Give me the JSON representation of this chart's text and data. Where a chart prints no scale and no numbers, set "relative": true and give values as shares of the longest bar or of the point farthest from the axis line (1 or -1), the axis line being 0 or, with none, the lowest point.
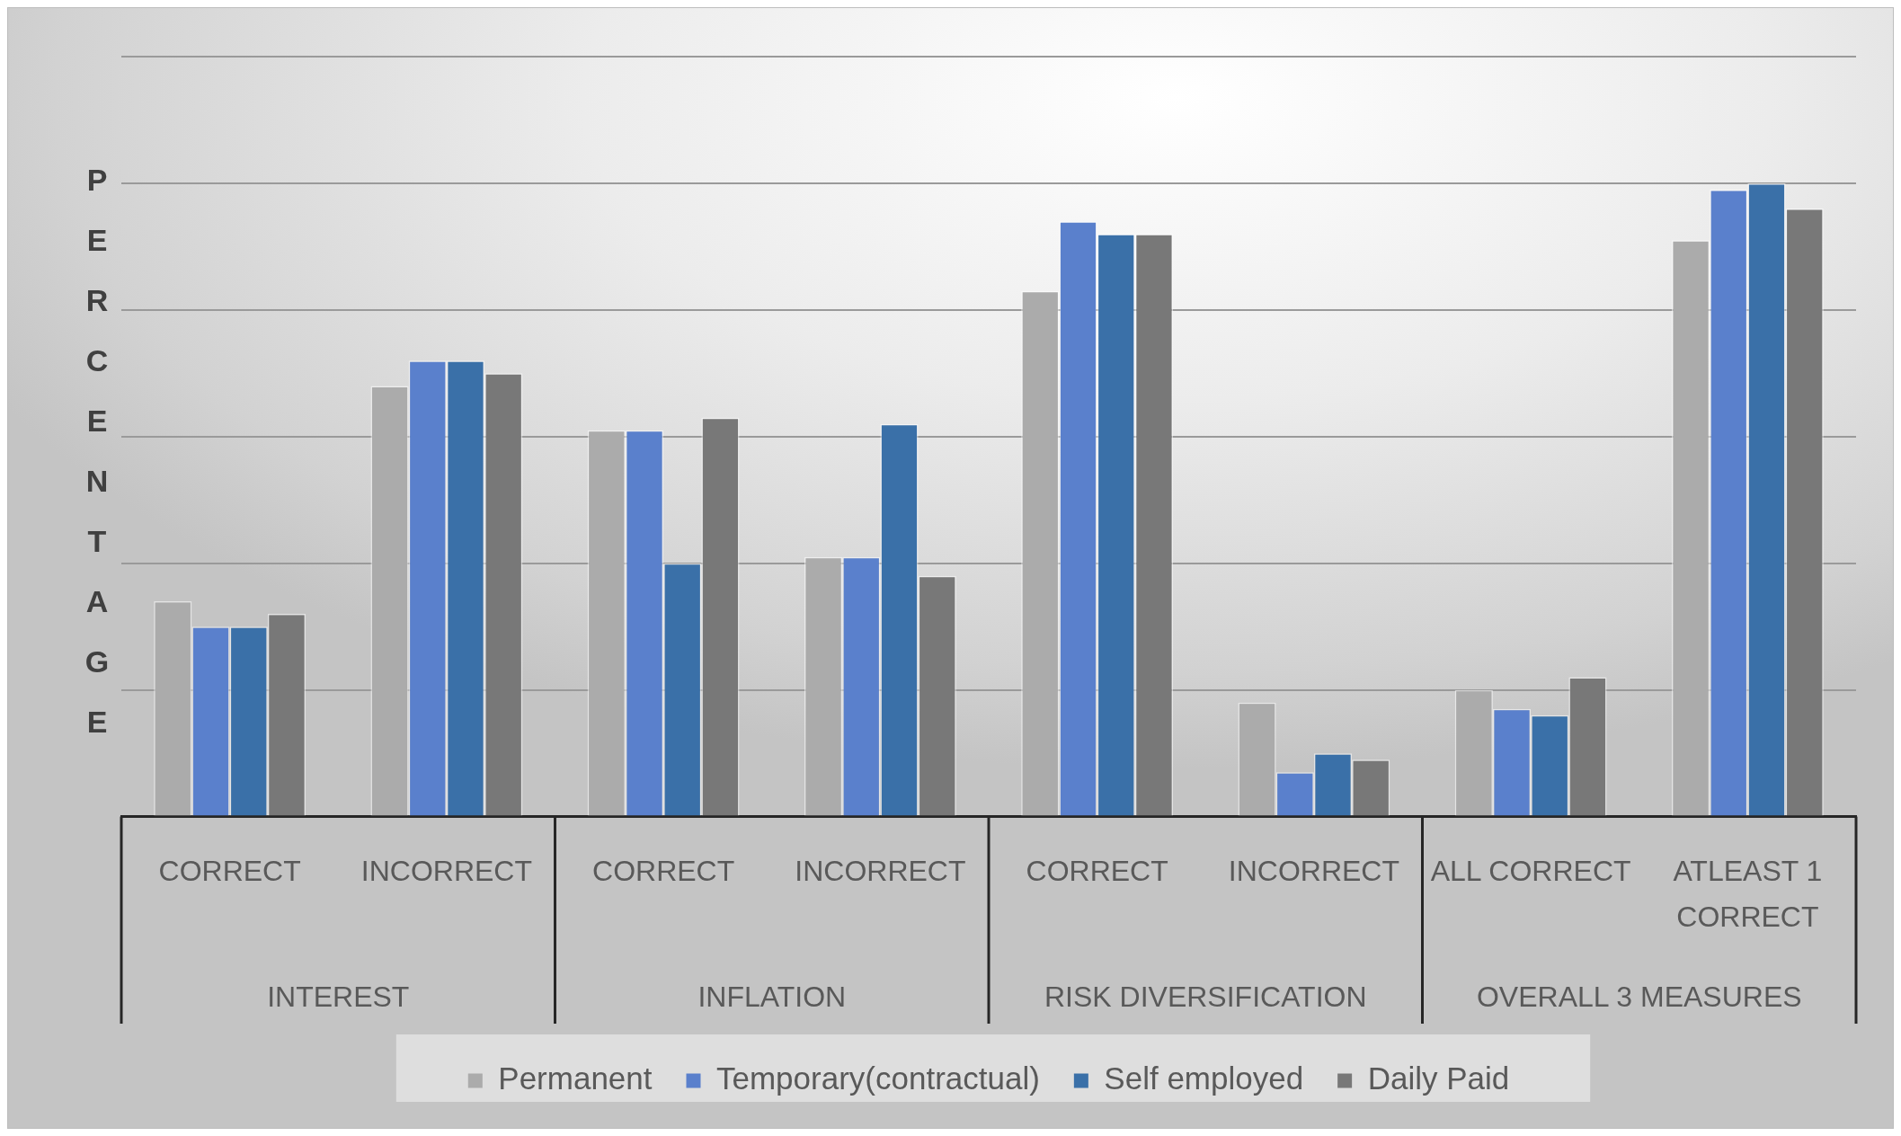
{
  "chart_data": {
    "type": "bar",
    "ylabel": "PERCENTAGE",
    "relative": true,
    "grid": "y",
    "legend": "bottom",
    "categories": [
      "CORRECT",
      "INCORRECT",
      "CORRECT",
      "INCORRECT",
      "CORRECT",
      "INCORRECT",
      "ALL CORRECT",
      "ATLEAST 1 CORRECT"
    ],
    "annotations": [
      "INTEREST",
      "INFLATION",
      "RISK DIVERSIFICATION",
      "OVERALL 3 MEASURES"
    ],
    "series": [
      {
        "name": "Permanent",
        "color": "#ababab",
        "values": [
          0.34,
          0.68,
          0.61,
          0.41,
          0.83,
          0.18,
          0.2,
          0.91
        ]
      },
      {
        "name": "Temporary(contractual)",
        "color": "#5a80cc",
        "values": [
          0.3,
          0.72,
          0.61,
          0.41,
          0.94,
          0.07,
          0.17,
          0.99
        ]
      },
      {
        "name": "Self employed",
        "color": "#3a70a8",
        "values": [
          0.3,
          0.72,
          0.4,
          0.62,
          0.92,
          0.1,
          0.16,
          1
        ]
      },
      {
        "name": "Daily Paid",
        "color": "#787878",
        "values": [
          0.32,
          0.7,
          0.63,
          0.38,
          0.92,
          0.09,
          0.22,
          0.96
        ]
      }
    ]
  }
}
